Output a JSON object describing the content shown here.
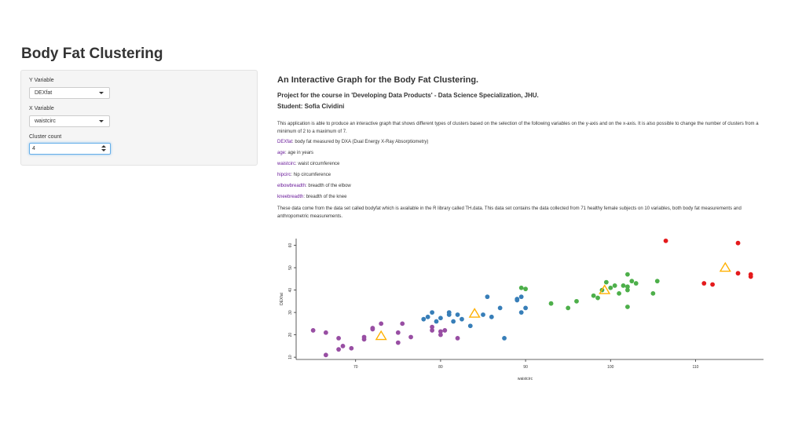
{
  "app": {
    "title": "Body Fat Clustering"
  },
  "sidebar": {
    "y_variable": {
      "label": "Y Variable",
      "value": "DEXfat"
    },
    "x_variable": {
      "label": "X Variable",
      "value": "waistcirc"
    },
    "cluster_count": {
      "label": "Cluster count",
      "value": "4"
    }
  },
  "main": {
    "title": "An Interactive Graph for the Body Fat Clustering.",
    "project": "Project for the course in 'Developing Data Products' - Data Science Specialization, JHU.",
    "student": "Student: Sofia Cividini",
    "intro": "This application is able to produce an interactive graph that shows different types of clusters based on the selection of the following variables on the y-axis and on the x-axis. It is also possible to change the number of clusters from a minimum of 2 to a maximum of 7.",
    "variables": [
      {
        "name": "DEXfat",
        "desc": ": body fat measured by DXA (Dual Energy X-Ray Absorptiometry)"
      },
      {
        "name": "age",
        "desc": ": age in years"
      },
      {
        "name": "waistcirc",
        "desc": ": waist circumference"
      },
      {
        "name": "hipcirc",
        "desc": ": hip circumference"
      },
      {
        "name": "elbowbreadth",
        "desc": ": breadth of the elbow"
      },
      {
        "name": "kneebreadth",
        "desc": ": breadth of the knee"
      }
    ],
    "data_note": "These data come from the data set called bodyfat which is available in the R library called TH.data. This data set contains the data collected from 71 healthy female subjects on 10 variables, both body fat measurements and anthropometric measurements."
  },
  "chart_data": {
    "type": "scatter",
    "xlabel": "waistcirc",
    "ylabel": "DEXfat",
    "xlim": [
      63,
      118
    ],
    "ylim": [
      9,
      63
    ],
    "x_ticks": [
      70,
      80,
      90,
      100,
      110
    ],
    "y_ticks": [
      10,
      20,
      30,
      40,
      50,
      60
    ],
    "grid": false,
    "colors": {
      "purple": "#984ea3",
      "blue": "#377eb8",
      "green": "#4daf4a",
      "red": "#e41a1c",
      "centers": "#ffb000"
    },
    "clusters": [
      {
        "color": "purple",
        "points": [
          [
            65,
            22
          ],
          [
            66.5,
            21
          ],
          [
            66.5,
            11
          ],
          [
            68,
            18.5
          ],
          [
            68,
            13.5
          ],
          [
            68.5,
            15
          ],
          [
            69.5,
            14
          ],
          [
            71,
            18
          ],
          [
            71,
            19
          ],
          [
            72,
            22.5
          ],
          [
            72,
            23
          ],
          [
            73,
            25
          ],
          [
            75,
            16.5
          ],
          [
            75,
            21
          ],
          [
            75.5,
            25
          ],
          [
            76.5,
            19
          ],
          [
            79,
            22
          ],
          [
            79,
            23.5
          ],
          [
            80,
            20
          ],
          [
            80,
            21.5
          ],
          [
            80.5,
            22
          ],
          [
            82,
            18.5
          ]
        ]
      },
      {
        "color": "blue",
        "points": [
          [
            78,
            27
          ],
          [
            78.5,
            28
          ],
          [
            79,
            30
          ],
          [
            79.5,
            26
          ],
          [
            80,
            27.5
          ],
          [
            81,
            29
          ],
          [
            81,
            30
          ],
          [
            81.5,
            26
          ],
          [
            82,
            29
          ],
          [
            82.5,
            27
          ],
          [
            83.5,
            24
          ],
          [
            85,
            29
          ],
          [
            85.5,
            37
          ],
          [
            86,
            28
          ],
          [
            87,
            32
          ],
          [
            87.5,
            18.5
          ],
          [
            89,
            36
          ],
          [
            89,
            35.5
          ],
          [
            89.5,
            37
          ],
          [
            89.5,
            30
          ],
          [
            90,
            32
          ]
        ]
      },
      {
        "color": "green",
        "points": [
          [
            89.5,
            41
          ],
          [
            90,
            40.5
          ],
          [
            93,
            34
          ],
          [
            95,
            32
          ],
          [
            96,
            35
          ],
          [
            98,
            37.5
          ],
          [
            98.5,
            36.5
          ],
          [
            99,
            40
          ],
          [
            99.5,
            43.5
          ],
          [
            100,
            41
          ],
          [
            100.5,
            42
          ],
          [
            101,
            38.5
          ],
          [
            101.5,
            42
          ],
          [
            102,
            47
          ],
          [
            102,
            41.5
          ],
          [
            102,
            40
          ],
          [
            102,
            32.5
          ],
          [
            102.5,
            44
          ],
          [
            103,
            43
          ],
          [
            105,
            38.5
          ],
          [
            105.5,
            44
          ]
        ]
      },
      {
        "color": "red",
        "points": [
          [
            106.5,
            62
          ],
          [
            111,
            43
          ],
          [
            112,
            42.5
          ],
          [
            115,
            61
          ],
          [
            115,
            47.5
          ],
          [
            116.5,
            46
          ],
          [
            116.5,
            47
          ]
        ]
      }
    ],
    "centers": [
      [
        73,
        19.5
      ],
      [
        84,
        29.5
      ],
      [
        99.3,
        40
      ],
      [
        113.5,
        50
      ]
    ]
  }
}
